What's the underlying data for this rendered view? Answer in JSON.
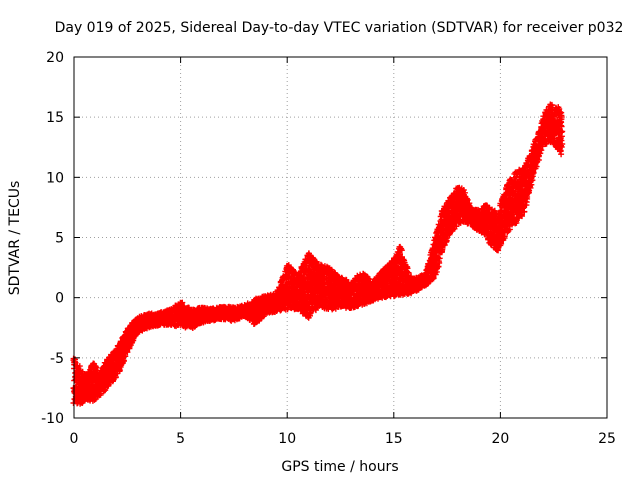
{
  "chart_data": {
    "type": "scatter",
    "title": "Day 019 of 2025, Sidereal Day-to-day VTEC variation (SDTVAR) for receiver p032",
    "xlabel": "GPS time / hours",
    "ylabel": "SDTVAR / TECUs",
    "xlim": [
      0,
      25
    ],
    "ylim": [
      -10,
      20
    ],
    "xticks": [
      "0",
      "5",
      "10",
      "15",
      "20",
      "25"
    ],
    "yticks": [
      "-10",
      "-5",
      "0",
      "5",
      "10",
      "15",
      "20"
    ],
    "grid": true,
    "marker": "plus",
    "color": "#ff0000",
    "series": [
      {
        "name": "SDTVAR",
        "envelope": [
          {
            "x": 0.0,
            "lo": -8.8,
            "hi": -5.0
          },
          {
            "x": 0.3,
            "lo": -8.9,
            "hi": -5.8
          },
          {
            "x": 0.6,
            "lo": -8.5,
            "hi": -6.5
          },
          {
            "x": 0.9,
            "lo": -8.6,
            "hi": -5.3
          },
          {
            "x": 1.2,
            "lo": -8.2,
            "hi": -6.2
          },
          {
            "x": 1.5,
            "lo": -7.6,
            "hi": -5.2
          },
          {
            "x": 1.8,
            "lo": -7.0,
            "hi": -4.6
          },
          {
            "x": 2.1,
            "lo": -6.3,
            "hi": -3.8
          },
          {
            "x": 2.4,
            "lo": -5.0,
            "hi": -2.9
          },
          {
            "x": 2.7,
            "lo": -3.8,
            "hi": -2.1
          },
          {
            "x": 3.0,
            "lo": -2.9,
            "hi": -1.6
          },
          {
            "x": 3.5,
            "lo": -2.5,
            "hi": -1.3
          },
          {
            "x": 4.0,
            "lo": -2.3,
            "hi": -1.2
          },
          {
            "x": 4.5,
            "lo": -2.3,
            "hi": -1.0
          },
          {
            "x": 5.0,
            "lo": -2.4,
            "hi": -0.3
          },
          {
            "x": 5.5,
            "lo": -2.6,
            "hi": -1.0
          },
          {
            "x": 6.0,
            "lo": -2.1,
            "hi": -0.8
          },
          {
            "x": 6.5,
            "lo": -1.9,
            "hi": -0.9
          },
          {
            "x": 7.0,
            "lo": -1.8,
            "hi": -0.7
          },
          {
            "x": 7.5,
            "lo": -2.0,
            "hi": -0.8
          },
          {
            "x": 8.0,
            "lo": -1.5,
            "hi": -0.6
          },
          {
            "x": 8.5,
            "lo": -2.3,
            "hi": -0.1
          },
          {
            "x": 9.0,
            "lo": -1.3,
            "hi": 0.2
          },
          {
            "x": 9.5,
            "lo": -1.2,
            "hi": 0.4
          },
          {
            "x": 10.0,
            "lo": -1.0,
            "hi": 2.8
          },
          {
            "x": 10.5,
            "lo": -1.0,
            "hi": 2.0
          },
          {
            "x": 11.0,
            "lo": -1.7,
            "hi": 3.8
          },
          {
            "x": 11.5,
            "lo": -0.7,
            "hi": 2.8
          },
          {
            "x": 12.0,
            "lo": -1.1,
            "hi": 2.5
          },
          {
            "x": 12.5,
            "lo": -0.8,
            "hi": 1.7
          },
          {
            "x": 13.0,
            "lo": -0.9,
            "hi": 1.3
          },
          {
            "x": 13.5,
            "lo": -0.6,
            "hi": 2.2
          },
          {
            "x": 14.0,
            "lo": -0.3,
            "hi": 1.4
          },
          {
            "x": 14.5,
            "lo": 0.0,
            "hi": 2.3
          },
          {
            "x": 15.0,
            "lo": 0.1,
            "hi": 3.2
          },
          {
            "x": 15.3,
            "lo": 0.2,
            "hi": 4.4
          },
          {
            "x": 15.7,
            "lo": 0.3,
            "hi": 2.0
          },
          {
            "x": 16.0,
            "lo": 0.5,
            "hi": 1.6
          },
          {
            "x": 16.5,
            "lo": 1.0,
            "hi": 2.0
          },
          {
            "x": 17.0,
            "lo": 1.8,
            "hi": 5.5
          },
          {
            "x": 17.3,
            "lo": 4.0,
            "hi": 7.5
          },
          {
            "x": 17.7,
            "lo": 5.5,
            "hi": 8.5
          },
          {
            "x": 18.0,
            "lo": 6.0,
            "hi": 9.2
          },
          {
            "x": 18.3,
            "lo": 6.3,
            "hi": 9.0
          },
          {
            "x": 18.6,
            "lo": 6.0,
            "hi": 7.5
          },
          {
            "x": 19.0,
            "lo": 5.5,
            "hi": 7.3
          },
          {
            "x": 19.3,
            "lo": 5.2,
            "hi": 7.8
          },
          {
            "x": 19.6,
            "lo": 4.2,
            "hi": 7.4
          },
          {
            "x": 19.9,
            "lo": 3.8,
            "hi": 7.0
          },
          {
            "x": 20.2,
            "lo": 5.0,
            "hi": 9.0
          },
          {
            "x": 20.5,
            "lo": 5.8,
            "hi": 10.0
          },
          {
            "x": 20.8,
            "lo": 6.2,
            "hi": 10.6
          },
          {
            "x": 21.1,
            "lo": 7.0,
            "hi": 10.8
          },
          {
            "x": 21.4,
            "lo": 9.0,
            "hi": 12.0
          },
          {
            "x": 21.7,
            "lo": 11.0,
            "hi": 13.5
          },
          {
            "x": 22.0,
            "lo": 12.5,
            "hi": 15.0
          },
          {
            "x": 22.3,
            "lo": 13.0,
            "hi": 16.1
          },
          {
            "x": 22.6,
            "lo": 12.5,
            "hi": 16.0
          },
          {
            "x": 22.9,
            "lo": 11.8,
            "hi": 15.5
          }
        ]
      }
    ]
  }
}
